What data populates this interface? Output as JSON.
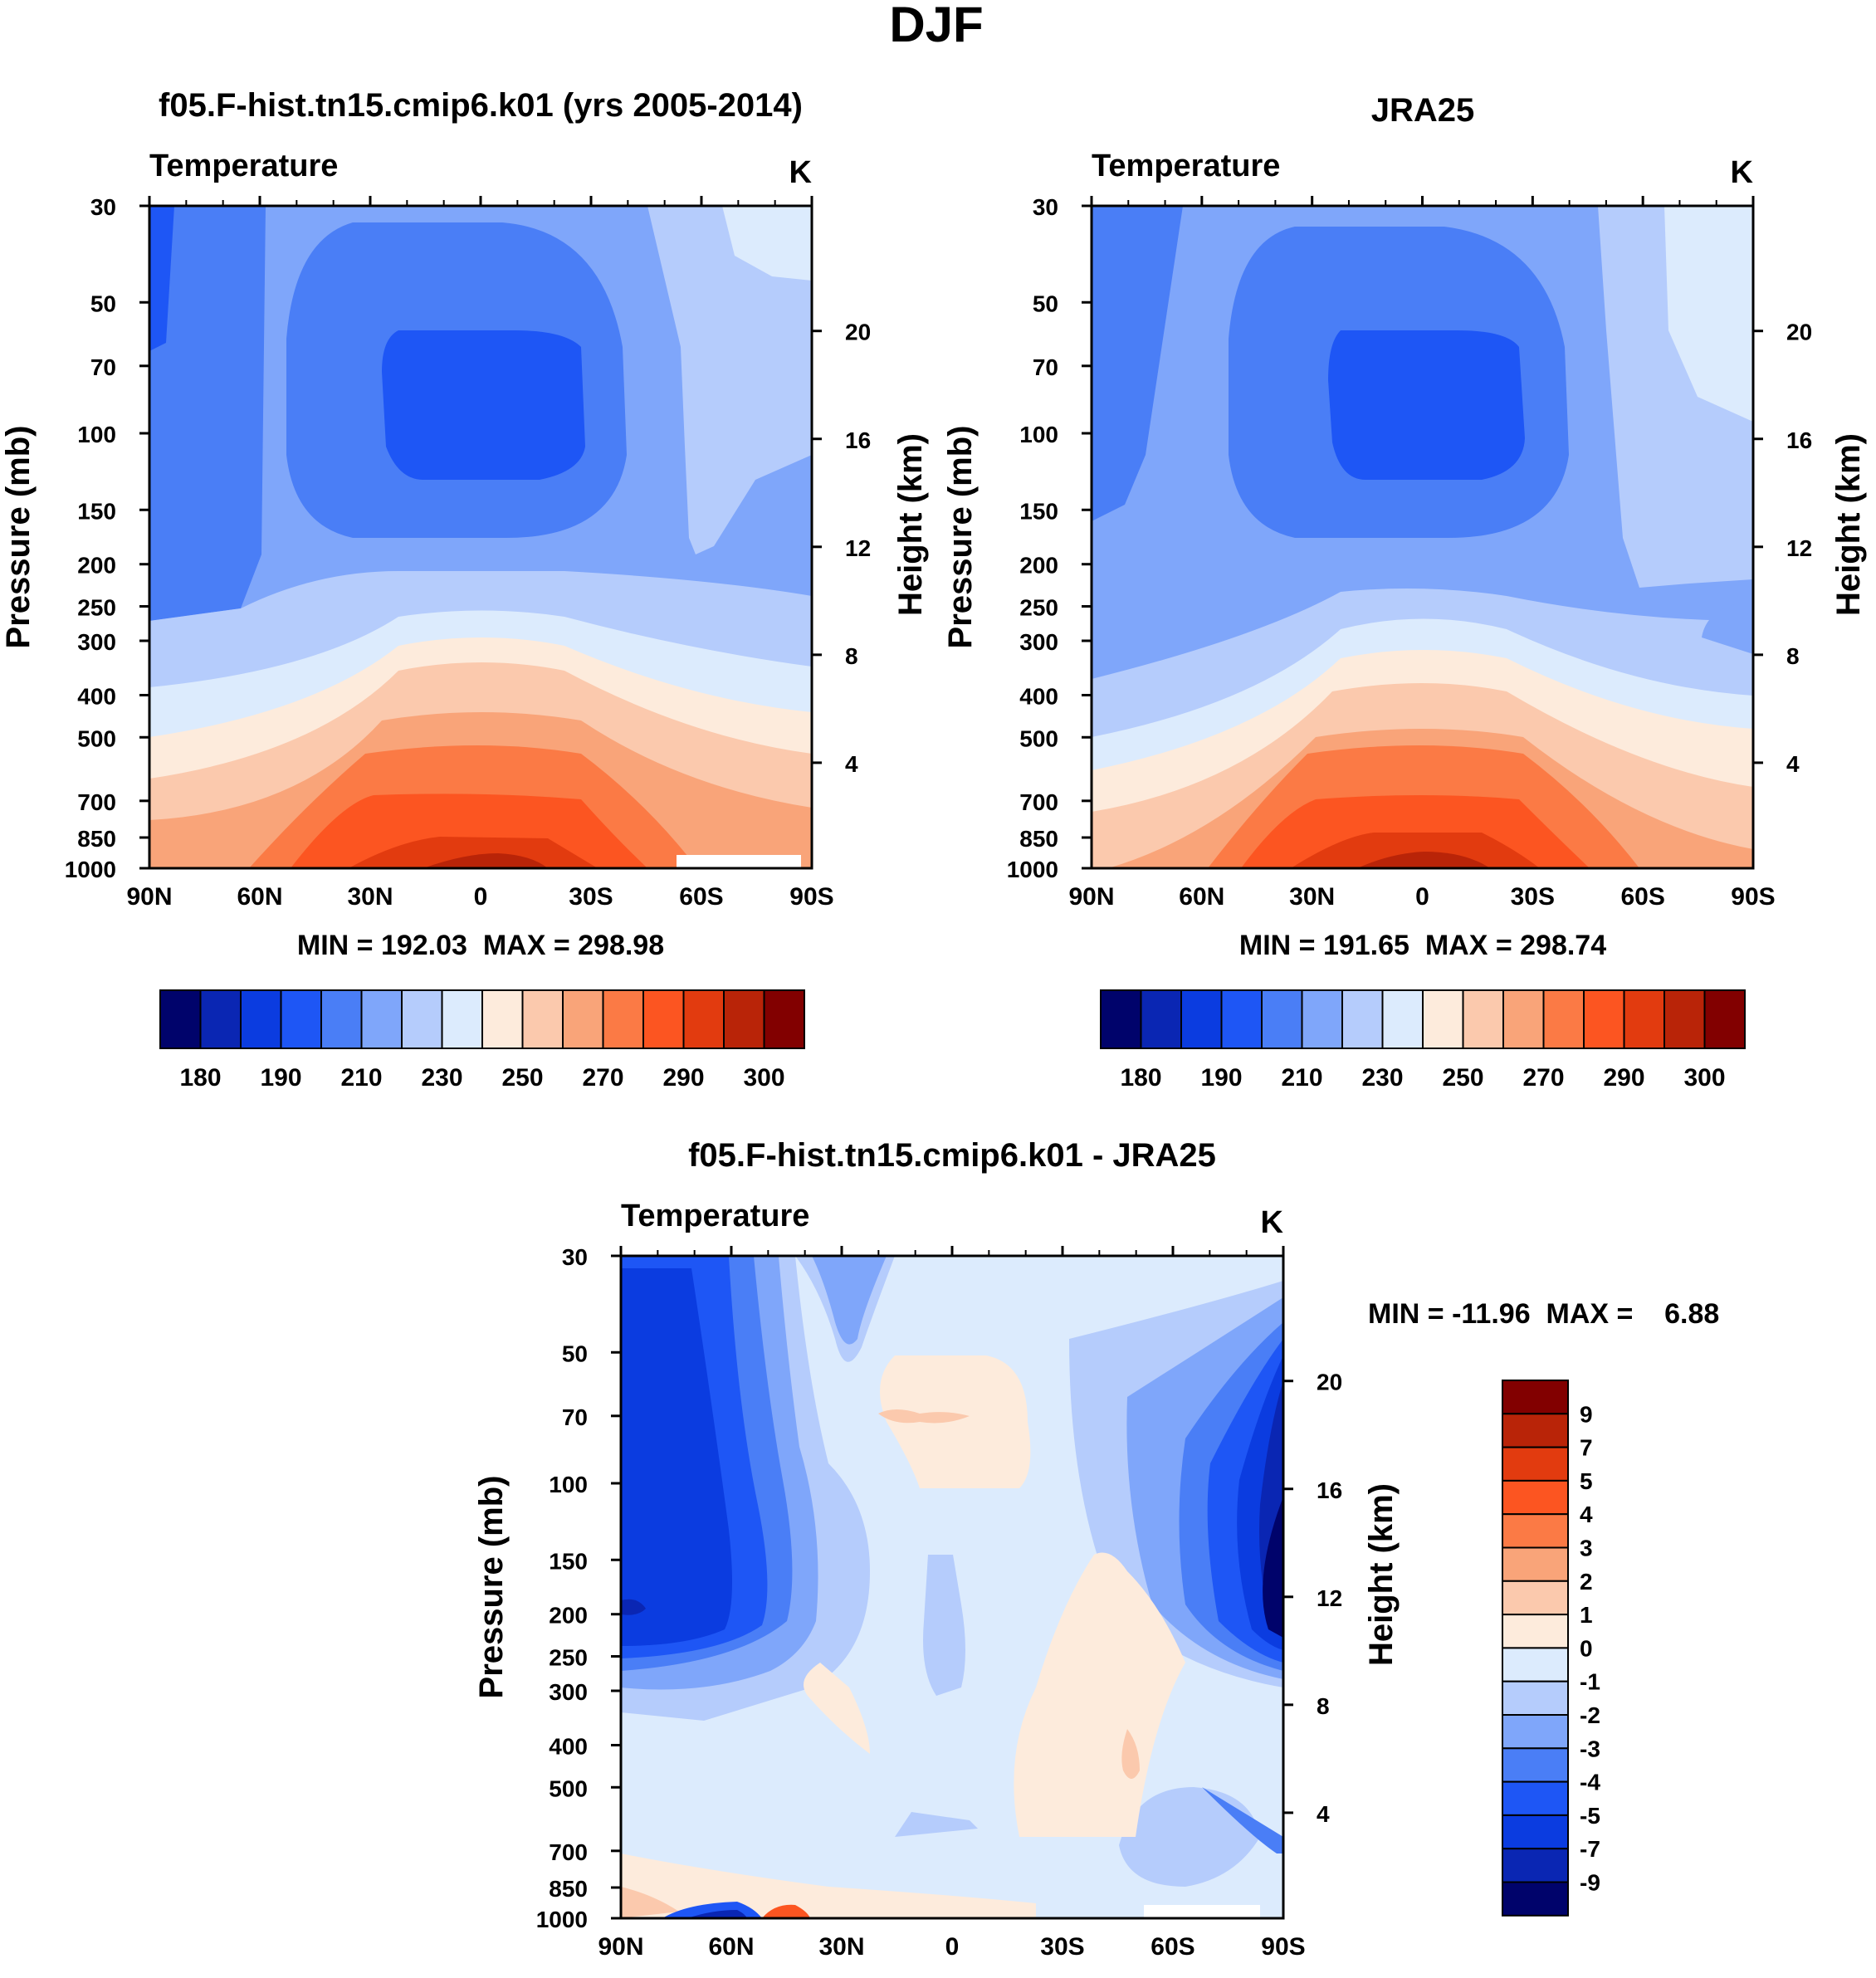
{
  "figure": {
    "title": "DJF"
  },
  "chart_data": [
    {
      "type": "heatmap",
      "title": "f05.F-hist.tn15.cmip6.k01 (yrs 2005-2014)",
      "left_label": "Temperature",
      "units": "K",
      "ylabel": "Pressure (mb)",
      "ylabel_right": "Height (km)",
      "x_ticks": [
        "90N",
        "60N",
        "30N",
        "0",
        "30S",
        "60S",
        "90S"
      ],
      "y_ticks": [
        "30",
        "50",
        "70",
        "100",
        "150",
        "200",
        "250",
        "300",
        "400",
        "500",
        "700",
        "850",
        "1000"
      ],
      "y_ticks_right": [
        "20",
        "16",
        "12",
        "8",
        "4"
      ],
      "min": 192.03,
      "max": 298.98,
      "stats_label": "MIN = 192.03  MAX = 298.98",
      "colorbar_labels": [
        "180",
        "190",
        "210",
        "230",
        "250",
        "270",
        "290",
        "300"
      ],
      "colorbar_levels": [
        180,
        185,
        190,
        200,
        210,
        220,
        230,
        240,
        250,
        260,
        270,
        280,
        290,
        295,
        300
      ]
    },
    {
      "type": "heatmap",
      "title": "JRA25",
      "left_label": "Temperature",
      "units": "K",
      "ylabel": "Pressure (mb)",
      "ylabel_right": "Height (km)",
      "x_ticks": [
        "90N",
        "60N",
        "30N",
        "0",
        "30S",
        "60S",
        "90S"
      ],
      "y_ticks": [
        "30",
        "50",
        "70",
        "100",
        "150",
        "200",
        "250",
        "300",
        "400",
        "500",
        "700",
        "850",
        "1000"
      ],
      "y_ticks_right": [
        "20",
        "16",
        "12",
        "8",
        "4"
      ],
      "min": 191.65,
      "max": 298.74,
      "stats_label": "MIN = 191.65  MAX = 298.74",
      "colorbar_labels": [
        "180",
        "190",
        "210",
        "230",
        "250",
        "270",
        "290",
        "300"
      ],
      "colorbar_levels": [
        180,
        185,
        190,
        200,
        210,
        220,
        230,
        240,
        250,
        260,
        270,
        280,
        290,
        295,
        300
      ]
    },
    {
      "type": "heatmap",
      "title": "f05.F-hist.tn15.cmip6.k01 - JRA25",
      "left_label": "Temperature",
      "units": "K",
      "ylabel": "Pressure (mb)",
      "ylabel_right": "Height (km)",
      "x_ticks": [
        "90N",
        "60N",
        "30N",
        "0",
        "30S",
        "60S",
        "90S"
      ],
      "y_ticks": [
        "30",
        "50",
        "70",
        "100",
        "150",
        "200",
        "250",
        "300",
        "400",
        "500",
        "700",
        "850",
        "1000"
      ],
      "y_ticks_right": [
        "20",
        "16",
        "12",
        "8",
        "4"
      ],
      "min": -11.96,
      "max": 6.88,
      "stats_label": "MIN = -11.96  MAX =    6.88",
      "colorbar_labels": [
        "9",
        "7",
        "5",
        "4",
        "3",
        "2",
        "1",
        "0",
        "-1",
        "-2",
        "-3",
        "-4",
        "-5",
        "-7",
        "-9"
      ]
    }
  ],
  "palette": [
    "#00036b",
    "#0a26b3",
    "#0b3ce0",
    "#1e56f5",
    "#4a7ef6",
    "#7fa6fa",
    "#b5ccfc",
    "#dcebfd",
    "#fdebdc",
    "#fbc9ad",
    "#f9a479",
    "#fb7a45",
    "#fc5521",
    "#e23b0f",
    "#b92408",
    "#820000"
  ]
}
